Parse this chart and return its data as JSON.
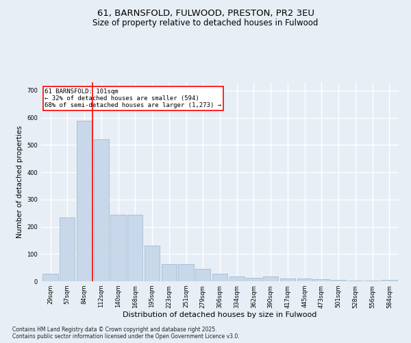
{
  "title": "61, BARNSFOLD, FULWOOD, PRESTON, PR2 3EU",
  "subtitle": "Size of property relative to detached houses in Fulwood",
  "xlabel": "Distribution of detached houses by size in Fulwood",
  "ylabel": "Number of detached properties",
  "categories": [
    "29sqm",
    "57sqm",
    "84sqm",
    "112sqm",
    "140sqm",
    "168sqm",
    "195sqm",
    "223sqm",
    "251sqm",
    "279sqm",
    "306sqm",
    "334sqm",
    "362sqm",
    "390sqm",
    "417sqm",
    "445sqm",
    "473sqm",
    "501sqm",
    "528sqm",
    "556sqm",
    "584sqm"
  ],
  "values": [
    27,
    234,
    590,
    520,
    245,
    245,
    130,
    62,
    62,
    45,
    27,
    18,
    12,
    18,
    10,
    10,
    8,
    5,
    3,
    2,
    5
  ],
  "bar_color": "#c8d8ea",
  "bar_edge_color": "#a0bcd0",
  "vline_color": "red",
  "vline_x_index": 2.5,
  "annotation_text": "61 BARNSFOLD: 101sqm\n← 32% of detached houses are smaller (594)\n68% of semi-detached houses are larger (1,273) →",
  "annotation_box_color": "white",
  "annotation_box_edge_color": "red",
  "ylim": [
    0,
    730
  ],
  "yticks": [
    0,
    100,
    200,
    300,
    400,
    500,
    600,
    700
  ],
  "footnote": "Contains HM Land Registry data © Crown copyright and database right 2025.\nContains public sector information licensed under the Open Government Licence v3.0.",
  "bg_color": "#e8eef5",
  "plot_bg_color": "#e8eef5",
  "grid_color": "white",
  "title_fontsize": 9.5,
  "subtitle_fontsize": 8.5,
  "xlabel_fontsize": 8,
  "ylabel_fontsize": 7.5,
  "tick_fontsize": 6,
  "annotation_fontsize": 6.5,
  "footnote_fontsize": 5.5
}
